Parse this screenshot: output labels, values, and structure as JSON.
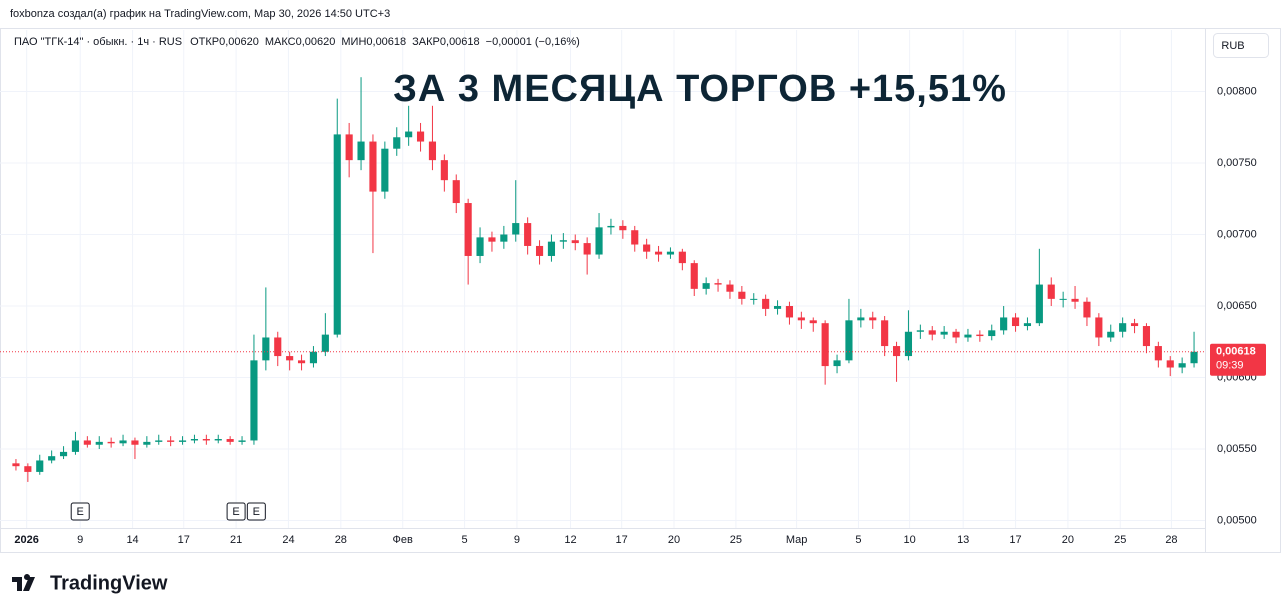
{
  "header": {
    "author_line": "foxbonza создал(а) график на TradingView.com, Мар 30, 2026 14:50 UTC+3",
    "logo": "TradingView",
    "currency_button": "RUB"
  },
  "chart_data": {
    "type": "candlestick",
    "symbol": "ПАО \"ТГК-14\" · обыкн. · 1ч · RUS",
    "legend": [
      {
        "label": "ОТКР",
        "value": "0,00620"
      },
      {
        "label": "МАКС",
        "value": "0,00620"
      },
      {
        "label": "МИН",
        "value": "0,00618"
      },
      {
        "label": "ЗАКР",
        "value": "0,00618"
      }
    ],
    "change": "−0,00001 (−0,16%)",
    "annotation": "ЗА 3 МЕСЯЦА ТОРГОВ +15,51%",
    "up_color": "#089981",
    "down_color": "#f23645",
    "open": [
      0.0054,
      0.00538,
      0.00534,
      0.00542,
      0.00545,
      0.00548,
      0.00556,
      0.00553,
      0.00555,
      0.00554,
      0.00556,
      0.00553,
      0.00555,
      0.00556,
      0.00555,
      0.00556,
      0.00557,
      0.00556,
      0.00557,
      0.00555,
      0.00556,
      0.00612,
      0.00628,
      0.00615,
      0.00612,
      0.0061,
      0.00618,
      0.0063,
      0.0077,
      0.00752,
      0.00765,
      0.0073,
      0.0076,
      0.00768,
      0.00772,
      0.00765,
      0.00752,
      0.00738,
      0.00722,
      0.00685,
      0.00698,
      0.00695,
      0.007,
      0.00708,
      0.00692,
      0.00685,
      0.00695,
      0.00696,
      0.00694,
      0.00686,
      0.00705,
      0.00706,
      0.00703,
      0.00693,
      0.00688,
      0.00686,
      0.00688,
      0.0068,
      0.00662,
      0.00666,
      0.00665,
      0.0066,
      0.00655,
      0.00655,
      0.00648,
      0.0065,
      0.00642,
      0.0064,
      0.00638,
      0.00608,
      0.00612,
      0.0064,
      0.00642,
      0.0064,
      0.00622,
      0.00615,
      0.00632,
      0.00633,
      0.0063,
      0.00632,
      0.00628,
      0.0063,
      0.00629,
      0.00633,
      0.00642,
      0.00636,
      0.00638,
      0.00665,
      0.00655,
      0.00655,
      0.00653,
      0.00642,
      0.00628,
      0.00632,
      0.00638,
      0.00636,
      0.00622,
      0.00612,
      0.00607,
      0.0061
    ],
    "high": [
      0.00543,
      0.0054,
      0.00546,
      0.00549,
      0.00552,
      0.00562,
      0.00559,
      0.00559,
      0.00558,
      0.0056,
      0.00558,
      0.00559,
      0.0056,
      0.00559,
      0.00559,
      0.0056,
      0.0056,
      0.0056,
      0.00559,
      0.00559,
      0.0063,
      0.00663,
      0.00632,
      0.00618,
      0.00616,
      0.00622,
      0.00645,
      0.00795,
      0.00778,
      0.0081,
      0.0077,
      0.00765,
      0.00775,
      0.0079,
      0.00778,
      0.0079,
      0.00756,
      0.00742,
      0.00725,
      0.00705,
      0.00702,
      0.00706,
      0.00738,
      0.00712,
      0.00696,
      0.007,
      0.00701,
      0.007,
      0.00698,
      0.00715,
      0.00711,
      0.0071,
      0.00706,
      0.00697,
      0.00692,
      0.00691,
      0.0069,
      0.00682,
      0.0067,
      0.00669,
      0.00668,
      0.00664,
      0.00659,
      0.00658,
      0.00654,
      0.00653,
      0.00646,
      0.00642,
      0.0064,
      0.00616,
      0.00655,
      0.00648,
      0.00646,
      0.00643,
      0.00625,
      0.00647,
      0.00637,
      0.00636,
      0.00636,
      0.00634,
      0.00634,
      0.00633,
      0.00637,
      0.0065,
      0.00645,
      0.00642,
      0.0069,
      0.0067,
      0.0066,
      0.00664,
      0.00656,
      0.00645,
      0.00637,
      0.00642,
      0.00641,
      0.00638,
      0.00625,
      0.00615,
      0.00614,
      0.00632
    ],
    "low": [
      0.00535,
      0.00527,
      0.00532,
      0.0054,
      0.00543,
      0.00546,
      0.00551,
      0.0055,
      0.00551,
      0.00552,
      0.00543,
      0.00551,
      0.00553,
      0.00552,
      0.00553,
      0.00554,
      0.00553,
      0.00554,
      0.00553,
      0.00553,
      0.00553,
      0.00605,
      0.00608,
      0.00605,
      0.00605,
      0.00607,
      0.00615,
      0.00628,
      0.0074,
      0.00745,
      0.00687,
      0.00725,
      0.00755,
      0.00762,
      0.00758,
      0.00745,
      0.0073,
      0.00715,
      0.00665,
      0.0068,
      0.00688,
      0.0069,
      0.00695,
      0.00686,
      0.00679,
      0.00681,
      0.0069,
      0.00689,
      0.00672,
      0.00683,
      0.007,
      0.00697,
      0.00688,
      0.00683,
      0.00681,
      0.00683,
      0.00675,
      0.00657,
      0.00658,
      0.0066,
      0.00655,
      0.00651,
      0.00651,
      0.00643,
      0.00644,
      0.00637,
      0.00634,
      0.00632,
      0.00595,
      0.00603,
      0.0061,
      0.00635,
      0.00634,
      0.00615,
      0.00597,
      0.00612,
      0.00627,
      0.00626,
      0.00627,
      0.00624,
      0.00625,
      0.00625,
      0.00626,
      0.0063,
      0.00632,
      0.00633,
      0.00636,
      0.0065,
      0.00649,
      0.00648,
      0.00636,
      0.00622,
      0.00625,
      0.00628,
      0.00631,
      0.00617,
      0.00607,
      0.00601,
      0.00603,
      0.00607
    ],
    "close": [
      0.00538,
      0.00534,
      0.00542,
      0.00545,
      0.00548,
      0.00556,
      0.00553,
      0.00555,
      0.00554,
      0.00556,
      0.00553,
      0.00555,
      0.00556,
      0.00555,
      0.00556,
      0.00557,
      0.00556,
      0.00557,
      0.00555,
      0.00556,
      0.00612,
      0.00628,
      0.00615,
      0.00612,
      0.0061,
      0.00618,
      0.0063,
      0.0077,
      0.00752,
      0.00765,
      0.0073,
      0.0076,
      0.00768,
      0.00772,
      0.00765,
      0.00752,
      0.00738,
      0.00722,
      0.00685,
      0.00698,
      0.00695,
      0.007,
      0.00708,
      0.00692,
      0.00685,
      0.00695,
      0.00696,
      0.00694,
      0.00686,
      0.00705,
      0.00706,
      0.00703,
      0.00693,
      0.00688,
      0.00686,
      0.00688,
      0.0068,
      0.00662,
      0.00666,
      0.00665,
      0.0066,
      0.00655,
      0.00655,
      0.00648,
      0.0065,
      0.00642,
      0.0064,
      0.00638,
      0.00608,
      0.00612,
      0.0064,
      0.00642,
      0.0064,
      0.00622,
      0.00615,
      0.00632,
      0.00633,
      0.0063,
      0.00632,
      0.00628,
      0.0063,
      0.00629,
      0.00633,
      0.00642,
      0.00636,
      0.00638,
      0.00665,
      0.00655,
      0.00655,
      0.00653,
      0.00642,
      0.00628,
      0.00632,
      0.00638,
      0.00636,
      0.00622,
      0.00612,
      0.00607,
      0.0061,
      0.00618
    ],
    "xlim": [
      0,
      100
    ],
    "xticks": [
      {
        "value": 1.4,
        "label": "2026"
      },
      {
        "value": 5.9,
        "label": "9"
      },
      {
        "value": 10.3,
        "label": "14"
      },
      {
        "value": 14.6,
        "label": "17"
      },
      {
        "value": 19,
        "label": "21"
      },
      {
        "value": 23.4,
        "label": "24"
      },
      {
        "value": 27.8,
        "label": "28"
      },
      {
        "value": 33,
        "label": "Фев"
      },
      {
        "value": 38.2,
        "label": "5"
      },
      {
        "value": 42.6,
        "label": "9"
      },
      {
        "value": 47.1,
        "label": "12"
      },
      {
        "value": 51.4,
        "label": "17"
      },
      {
        "value": 55.8,
        "label": "20"
      },
      {
        "value": 61,
        "label": "25"
      },
      {
        "value": 66.1,
        "label": "Мар"
      },
      {
        "value": 71.3,
        "label": "5"
      },
      {
        "value": 75.6,
        "label": "10"
      },
      {
        "value": 80.1,
        "label": "13"
      },
      {
        "value": 84.5,
        "label": "17"
      },
      {
        "value": 88.9,
        "label": "20"
      },
      {
        "value": 93.3,
        "label": "25"
      },
      {
        "value": 97.6,
        "label": "28"
      }
    ],
    "ylim": [
      0.00478,
      0.00843
    ],
    "yticks": [
      {
        "value": 0.005,
        "label": "0,00500"
      },
      {
        "value": 0.0055,
        "label": "0,00550"
      },
      {
        "value": 0.006,
        "label": "0,00600"
      },
      {
        "value": 0.0065,
        "label": "0,00650"
      },
      {
        "value": 0.007,
        "label": "0,00700"
      },
      {
        "value": 0.0075,
        "label": "0,00750"
      },
      {
        "value": 0.008,
        "label": "0,00800"
      }
    ],
    "grid": true,
    "last_price": {
      "value": 0.00618,
      "label": "0,00618",
      "countdown": "09:39",
      "color": "#f23645"
    },
    "events": [
      {
        "x": 5.9,
        "label": "E"
      },
      {
        "x": 19,
        "label": "E"
      },
      {
        "x": 20.7,
        "label": "E"
      }
    ]
  }
}
